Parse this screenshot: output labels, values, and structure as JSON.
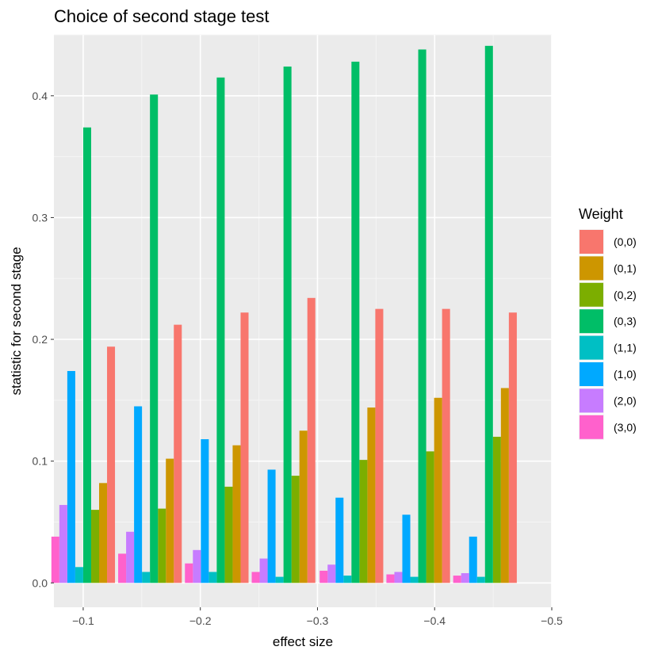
{
  "chart_data": {
    "type": "bar",
    "title": "Choice of second stage test",
    "xlabel": "effect size",
    "ylabel": "statistic for second stage",
    "xlim": [
      -0.075,
      -0.5
    ],
    "ylim": [
      -0.02,
      0.45
    ],
    "x_ticks": [
      -0.1,
      -0.2,
      -0.3,
      -0.4,
      -0.5
    ],
    "x_tick_labels": [
      "−0.1",
      "−0.2",
      "−0.3",
      "−0.4",
      "−0.5"
    ],
    "y_ticks": [
      0.0,
      0.1,
      0.2,
      0.3,
      0.4
    ],
    "y_tick_labels": [
      "0.0",
      "0.1",
      "0.2",
      "0.3",
      "0.4"
    ],
    "grid": true,
    "legend_position": "right",
    "legend_title": "Weight",
    "x_centers": [
      -0.1,
      -0.157,
      -0.214,
      -0.271,
      -0.329,
      -0.386,
      -0.443
    ],
    "group_width": 0.0543,
    "series": [
      {
        "name": "(0,0)",
        "color": "#F8766D",
        "values": [
          0.194,
          0.212,
          0.222,
          0.234,
          0.225,
          0.225,
          0.222
        ]
      },
      {
        "name": "(0,1)",
        "color": "#CD9600",
        "values": [
          0.082,
          0.102,
          0.113,
          0.125,
          0.144,
          0.152,
          0.16
        ]
      },
      {
        "name": "(0,2)",
        "color": "#7CAE00",
        "values": [
          0.06,
          0.061,
          0.079,
          0.088,
          0.101,
          0.108,
          0.12
        ]
      },
      {
        "name": "(0,3)",
        "color": "#00BE67",
        "values": [
          0.374,
          0.401,
          0.415,
          0.424,
          0.428,
          0.438,
          0.441
        ]
      },
      {
        "name": "(1,1)",
        "color": "#00BFC4",
        "values": [
          0.013,
          0.009,
          0.009,
          0.005,
          0.006,
          0.005,
          0.005
        ]
      },
      {
        "name": "(1,0)",
        "color": "#00A9FF",
        "values": [
          0.174,
          0.145,
          0.118,
          0.093,
          0.07,
          0.056,
          0.038
        ]
      },
      {
        "name": "(2,0)",
        "color": "#C77CFF",
        "values": [
          0.064,
          0.042,
          0.027,
          0.02,
          0.015,
          0.009,
          0.008
        ]
      },
      {
        "name": "(3,0)",
        "color": "#FF61CC",
        "values": [
          0.038,
          0.024,
          0.016,
          0.009,
          0.01,
          0.007,
          0.006
        ]
      }
    ]
  }
}
